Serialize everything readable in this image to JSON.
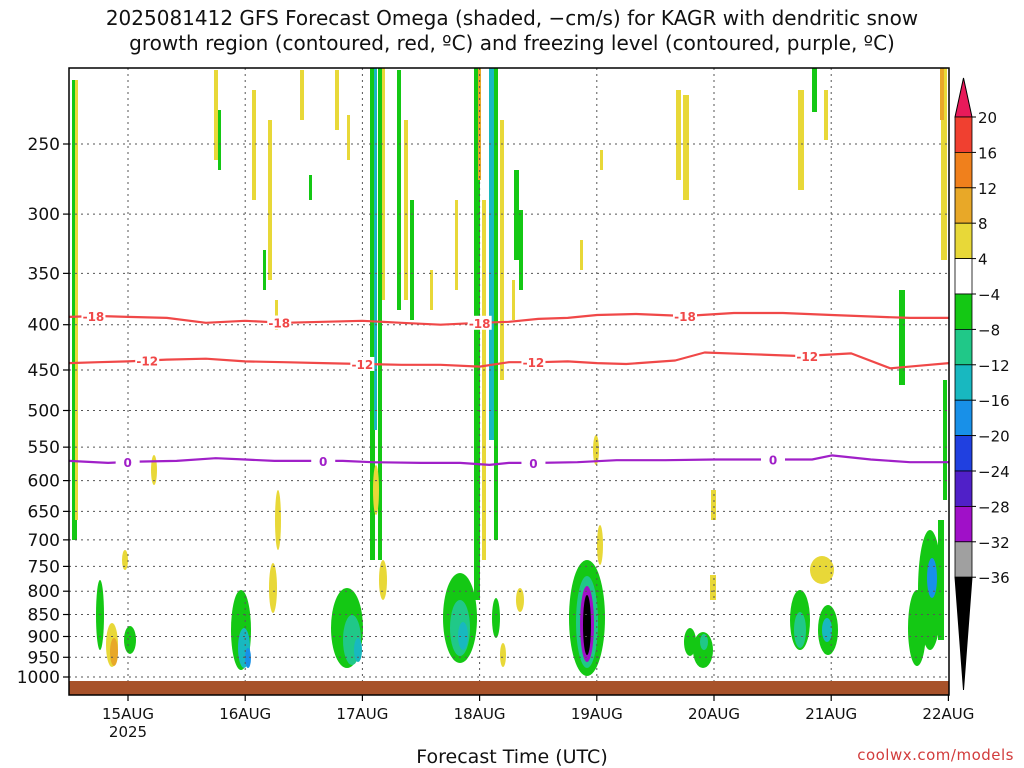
{
  "title_line1": "2025081412 GFS Forecast Omega (shaded, −cm/s) for KAGR with dendritic snow",
  "title_line2": "growth region (contoured, red, ºC) and freezing level (contoured, purple, ºC)",
  "credit": "coolwx.com/models",
  "chart_data": {
    "type": "heatmap",
    "title": "2025081412 GFS Forecast Omega (shaded, −cm/s) for KAGR with dendritic snow growth region (contoured, red, ºC) and freezing level (contoured, purple, ºC)",
    "xlabel": "Forecast Time (UTC)",
    "ylabel": "",
    "x_ticks": [
      "15AUG",
      "16AUG",
      "17AUG",
      "18AUG",
      "19AUG",
      "20AUG",
      "21AUG",
      "22AUG"
    ],
    "x_tick_sub": "2025",
    "xlim_hours": [
      0,
      180
    ],
    "y_ticks": [
      250,
      300,
      350,
      400,
      450,
      500,
      550,
      600,
      650,
      700,
      750,
      800,
      850,
      900,
      950,
      1000
    ],
    "ylim_hpa": [
      1025,
      200
    ],
    "y_scale": "log-pressure",
    "grid": true,
    "colorbar": {
      "labels": [
        "20",
        "16",
        "12",
        "8",
        "4",
        "−4",
        "−8",
        "−12",
        "−16",
        "−20",
        "−24",
        "−28",
        "−32",
        "−36"
      ],
      "colors": [
        "#e81a5a",
        "#f04030",
        "#f0801c",
        "#e8a828",
        "#e8d838",
        "#ffffff",
        "#14c814",
        "#20c888",
        "#18b8c0",
        "#1890e8",
        "#2040e0",
        "#5020c8",
        "#a010c8",
        "#a0a0a0"
      ]
    },
    "series": [
      {
        "name": "-18",
        "color": "#f04848",
        "points": [
          [
            0,
            392
          ],
          [
            6,
            391
          ],
          [
            12,
            392
          ],
          [
            20,
            393
          ],
          [
            28,
            398
          ],
          [
            36,
            396
          ],
          [
            44,
            398
          ],
          [
            52,
            397
          ],
          [
            60,
            396
          ],
          [
            68,
            398
          ],
          [
            76,
            400
          ],
          [
            84,
            398
          ],
          [
            90,
            397
          ],
          [
            96,
            394
          ],
          [
            102,
            393
          ],
          [
            108,
            390
          ],
          [
            116,
            389
          ],
          [
            126,
            391
          ],
          [
            136,
            388
          ],
          [
            146,
            388
          ],
          [
            156,
            390
          ],
          [
            166,
            392
          ],
          [
            172,
            393
          ],
          [
            180,
            393
          ]
        ],
        "labels_at": [
          5,
          43,
          84,
          126
        ]
      },
      {
        "name": "-12",
        "color": "#f04848",
        "points": [
          [
            0,
            442
          ],
          [
            6,
            441
          ],
          [
            12,
            440
          ],
          [
            20,
            438
          ],
          [
            28,
            437
          ],
          [
            36,
            440
          ],
          [
            44,
            441
          ],
          [
            52,
            442
          ],
          [
            60,
            443
          ],
          [
            68,
            444
          ],
          [
            76,
            444
          ],
          [
            84,
            446
          ],
          [
            90,
            441
          ],
          [
            96,
            441
          ],
          [
            102,
            440
          ],
          [
            108,
            442
          ],
          [
            114,
            443
          ],
          [
            124,
            439
          ],
          [
            130,
            430
          ],
          [
            140,
            432
          ],
          [
            150,
            434
          ],
          [
            160,
            431
          ],
          [
            168,
            448
          ],
          [
            174,
            445
          ],
          [
            180,
            442
          ]
        ],
        "labels_at": [
          16,
          60,
          95,
          151
        ]
      },
      {
        "name": "0",
        "color": "#a020c8",
        "points": [
          [
            0,
            570
          ],
          [
            8,
            573
          ],
          [
            14,
            571
          ],
          [
            22,
            570
          ],
          [
            30,
            566
          ],
          [
            36,
            568
          ],
          [
            42,
            570
          ],
          [
            48,
            570
          ],
          [
            56,
            570
          ],
          [
            62,
            572
          ],
          [
            72,
            573
          ],
          [
            80,
            573
          ],
          [
            86,
            576
          ],
          [
            90,
            573
          ],
          [
            96,
            573
          ],
          [
            104,
            572
          ],
          [
            112,
            569
          ],
          [
            122,
            569
          ],
          [
            132,
            568
          ],
          [
            142,
            568
          ],
          [
            152,
            568
          ],
          [
            156,
            562
          ],
          [
            164,
            568
          ],
          [
            172,
            572
          ],
          [
            180,
            572
          ]
        ],
        "labels_at": [
          12,
          52,
          95,
          144
        ]
      }
    ]
  }
}
